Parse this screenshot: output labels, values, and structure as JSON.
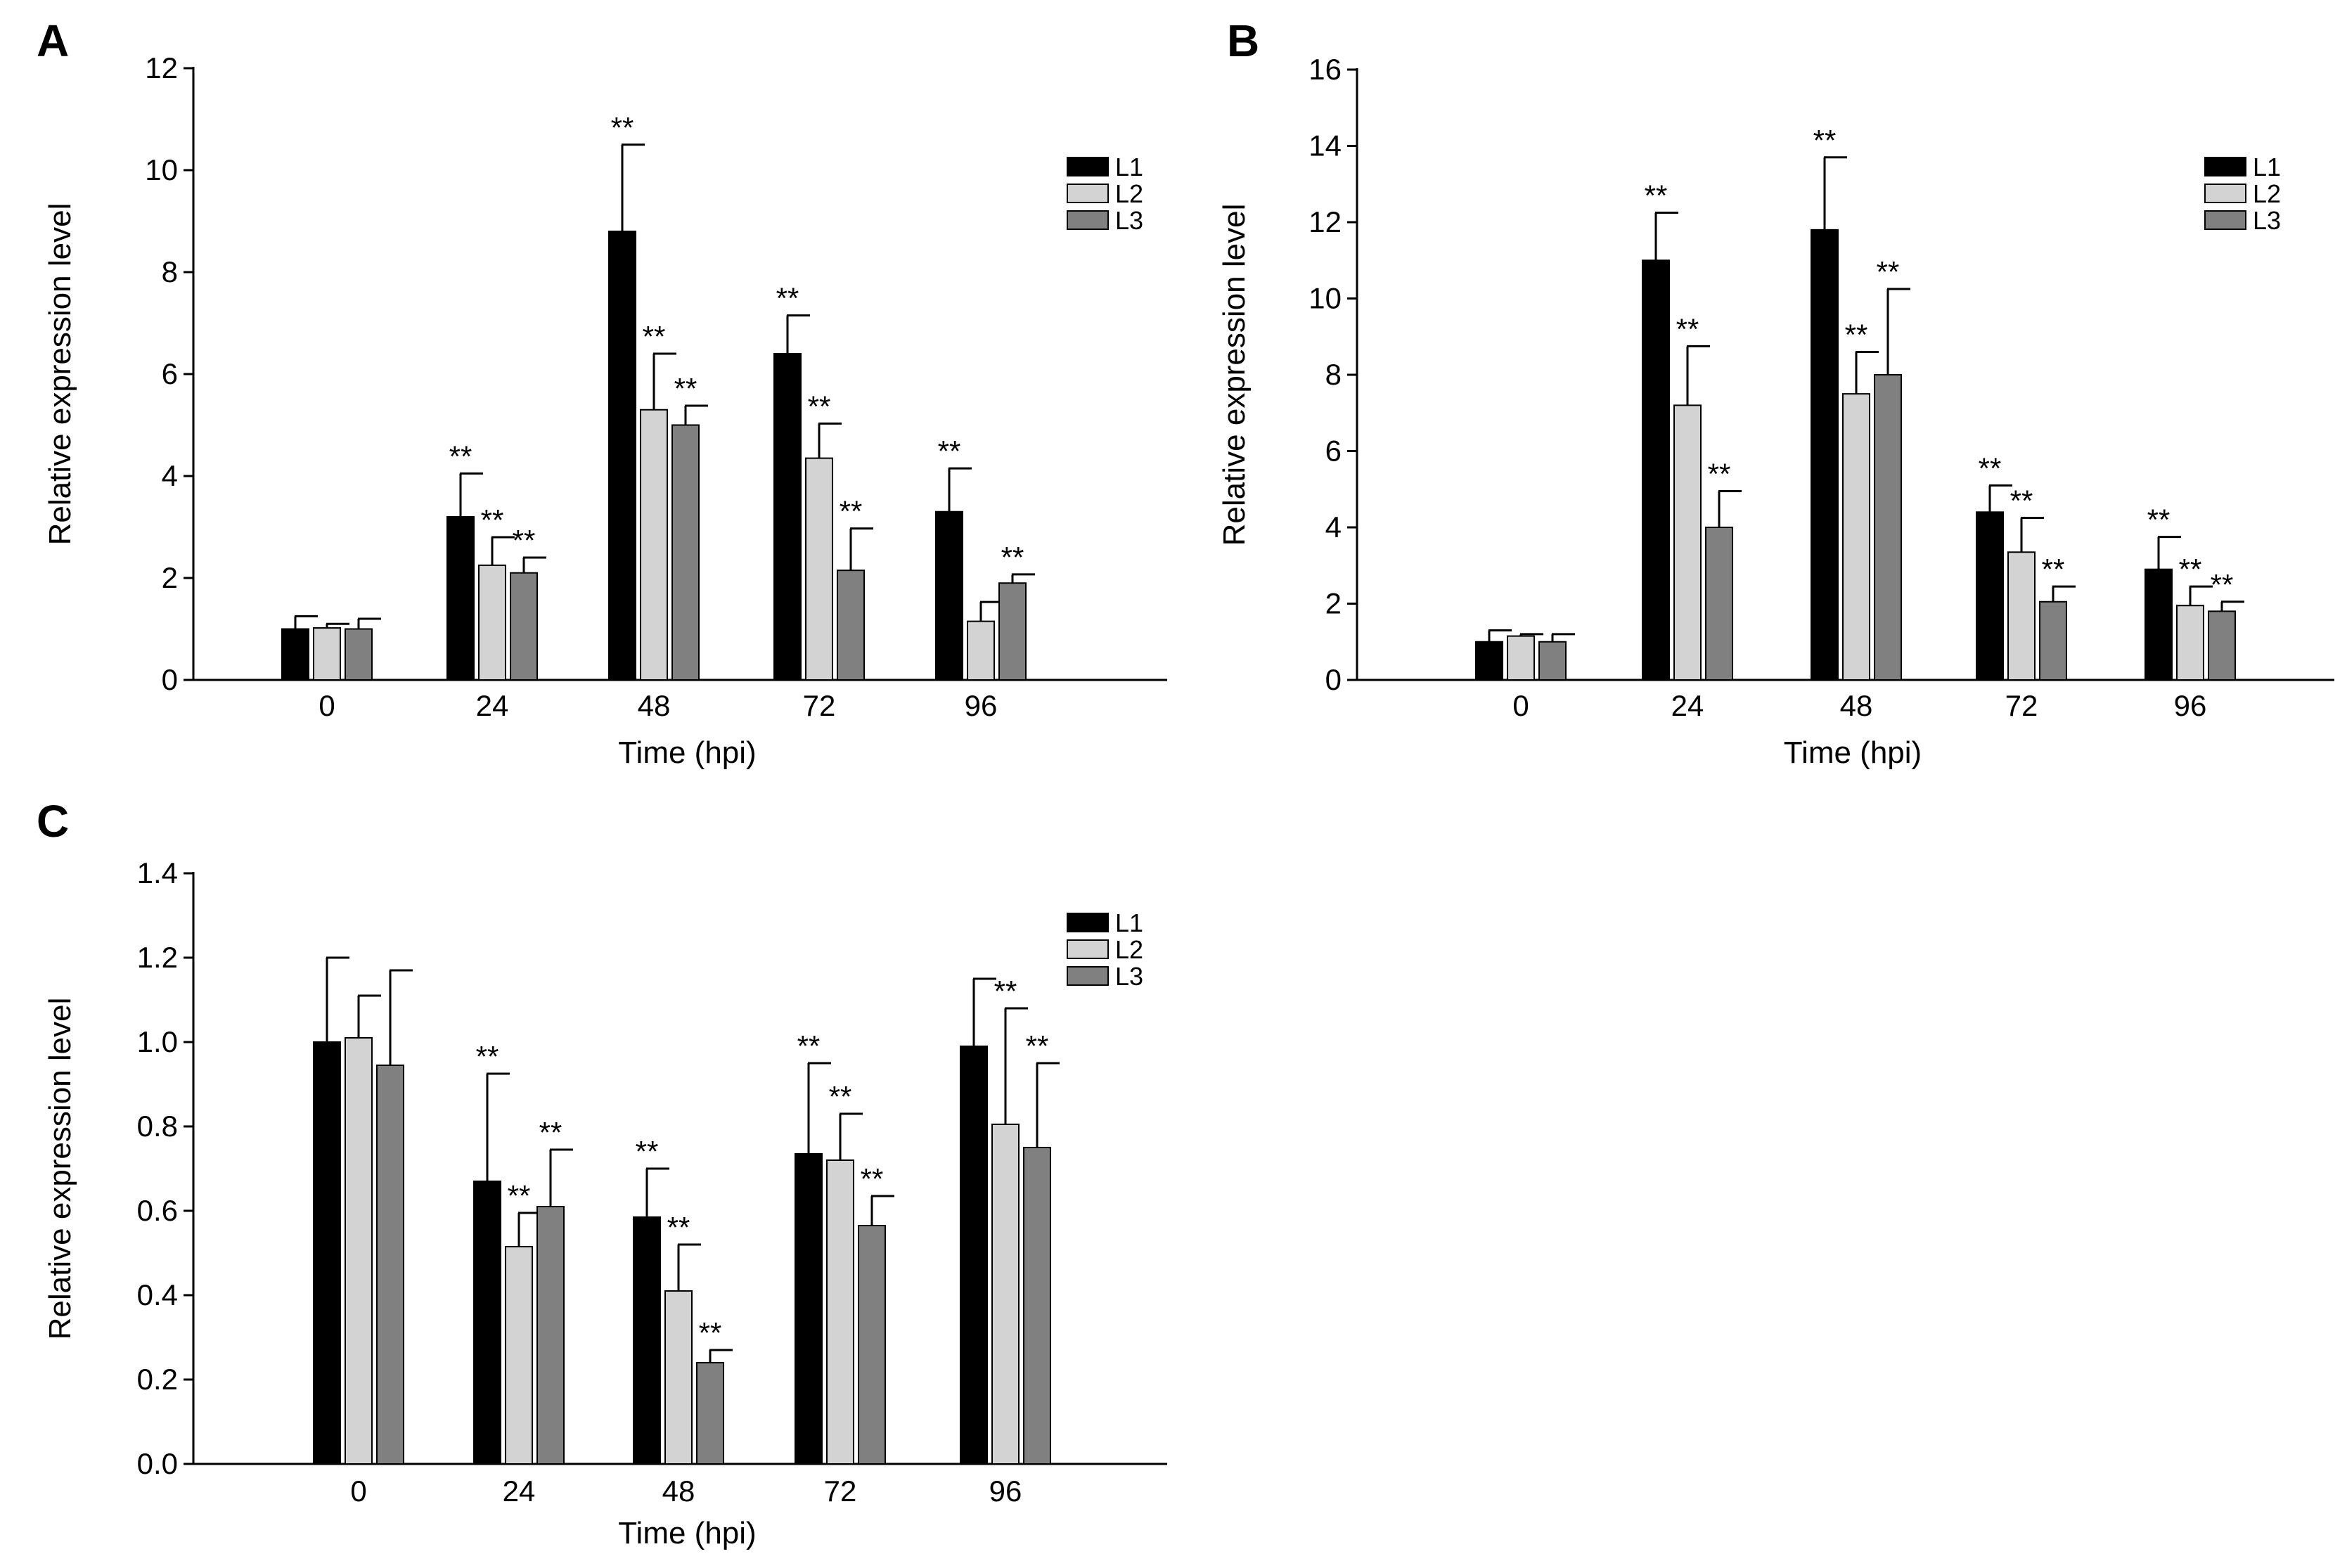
{
  "chart_data": [
    {
      "type": "bar",
      "panel_label": "A",
      "categories": [
        "0",
        "24",
        "48",
        "72",
        "96"
      ],
      "series": [
        {
          "name": "L1",
          "color": "#000000",
          "values": [
            1.0,
            3.2,
            8.8,
            6.4,
            3.3
          ],
          "errors": [
            0.25,
            0.85,
            1.7,
            0.75,
            0.85
          ],
          "sig": [
            "",
            "**",
            "**",
            "**",
            "**"
          ]
        },
        {
          "name": "L2",
          "color": "#d3d3d3",
          "values": [
            1.02,
            2.25,
            5.3,
            4.35,
            1.15
          ],
          "errors": [
            0.08,
            0.55,
            1.1,
            0.68,
            0.38
          ],
          "sig": [
            "",
            "**",
            "**",
            "**",
            ""
          ]
        },
        {
          "name": "L3",
          "color": "#808080",
          "values": [
            1.0,
            2.1,
            5.0,
            2.15,
            1.9
          ],
          "errors": [
            0.2,
            0.3,
            0.38,
            0.82,
            0.17
          ],
          "sig": [
            "",
            "**",
            "**",
            "**",
            "**"
          ]
        }
      ],
      "xlabel": "Time (hpi)",
      "ylabel": "Relative expression level",
      "ylim": [
        0,
        12
      ],
      "yticks": [
        "0",
        "2",
        "4",
        "6",
        "8",
        "10",
        "12"
      ],
      "legend": "top-right"
    },
    {
      "type": "bar",
      "panel_label": "B",
      "categories": [
        "0",
        "24",
        "48",
        "72",
        "96"
      ],
      "series": [
        {
          "name": "L1",
          "color": "#000000",
          "values": [
            1.0,
            11.0,
            11.8,
            4.4,
            2.9
          ],
          "errors": [
            0.3,
            1.25,
            1.9,
            0.7,
            0.85
          ],
          "sig": [
            "",
            "**",
            "**",
            "**",
            "**"
          ]
        },
        {
          "name": "L2",
          "color": "#d3d3d3",
          "values": [
            1.15,
            7.2,
            7.5,
            3.35,
            1.95
          ],
          "errors": [
            0.05,
            1.55,
            1.1,
            0.9,
            0.5
          ],
          "sig": [
            "",
            "**",
            "**",
            "**",
            "**"
          ]
        },
        {
          "name": "L3",
          "color": "#808080",
          "values": [
            1.0,
            4.0,
            8.0,
            2.05,
            1.8
          ],
          "errors": [
            0.2,
            0.95,
            2.25,
            0.4,
            0.25
          ],
          "sig": [
            "",
            "**",
            "**",
            "**",
            "**"
          ]
        }
      ],
      "xlabel": "Time (hpi)",
      "ylabel": "Relative expression level",
      "ylim": [
        0,
        16
      ],
      "yticks": [
        "0",
        "2",
        "4",
        "6",
        "8",
        "10",
        "12",
        "14",
        "16"
      ],
      "legend": "top-right"
    },
    {
      "type": "bar",
      "panel_label": "C",
      "categories": [
        "0",
        "24",
        "48",
        "72",
        "96"
      ],
      "series": [
        {
          "name": "L1",
          "color": "#000000",
          "values": [
            1.0,
            0.67,
            0.585,
            0.735,
            0.99
          ],
          "errors": [
            0.2,
            0.255,
            0.115,
            0.215,
            0.16
          ],
          "sig": [
            "",
            "**",
            "**",
            "**",
            ""
          ]
        },
        {
          "name": "L2",
          "color": "#d3d3d3",
          "values": [
            1.01,
            0.515,
            0.41,
            0.72,
            0.805
          ],
          "errors": [
            0.1,
            0.08,
            0.11,
            0.11,
            0.275
          ],
          "sig": [
            "",
            "**",
            "**",
            "**",
            "**"
          ]
        },
        {
          "name": "L3",
          "color": "#808080",
          "values": [
            0.945,
            0.61,
            0.24,
            0.565,
            0.75
          ],
          "errors": [
            0.225,
            0.135,
            0.03,
            0.07,
            0.2
          ],
          "sig": [
            "",
            "**",
            "**",
            "**",
            "**"
          ]
        }
      ],
      "xlabel": "Time (hpi)",
      "ylabel": "Relative expression level",
      "ylim": [
        0,
        1.4
      ],
      "yticks": [
        "0.0",
        "0.2",
        "0.4",
        "0.6",
        "0.8",
        "1.0",
        "1.2",
        "1.4"
      ],
      "legend": "top-right"
    }
  ]
}
